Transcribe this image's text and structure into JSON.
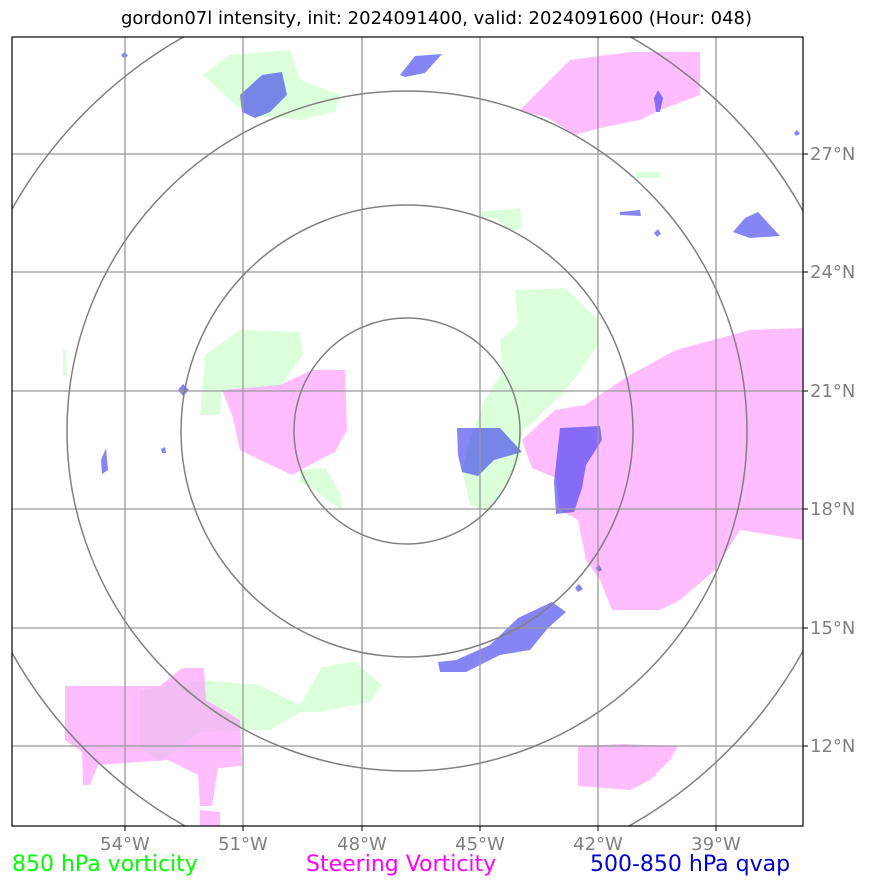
{
  "title": "gordon07l intensity, init: 2024091400, valid: 2024091600 (Hour: 048)",
  "legend": [
    {
      "label": "850 hPa vorticity",
      "color": "#00ff00"
    },
    {
      "label": "Steering Vorticity",
      "color": "#ff00ff"
    },
    {
      "label": "500-850 hPa qvap",
      "color": "#0000cc"
    }
  ],
  "map": {
    "lon_labels": [
      "54°W",
      "51°W",
      "48°W",
      "45°W",
      "42°W",
      "39°W"
    ],
    "lat_labels": [
      "27°N",
      "24°N",
      "21°N",
      "18°N",
      "15°N",
      "12°N"
    ],
    "colors": {
      "vorticity_850": "#ccffcc",
      "steering_vorticity": "#ff99ff",
      "qvap": "#3333ee",
      "gridline": "#999999",
      "range_ring": "#808080"
    }
  }
}
